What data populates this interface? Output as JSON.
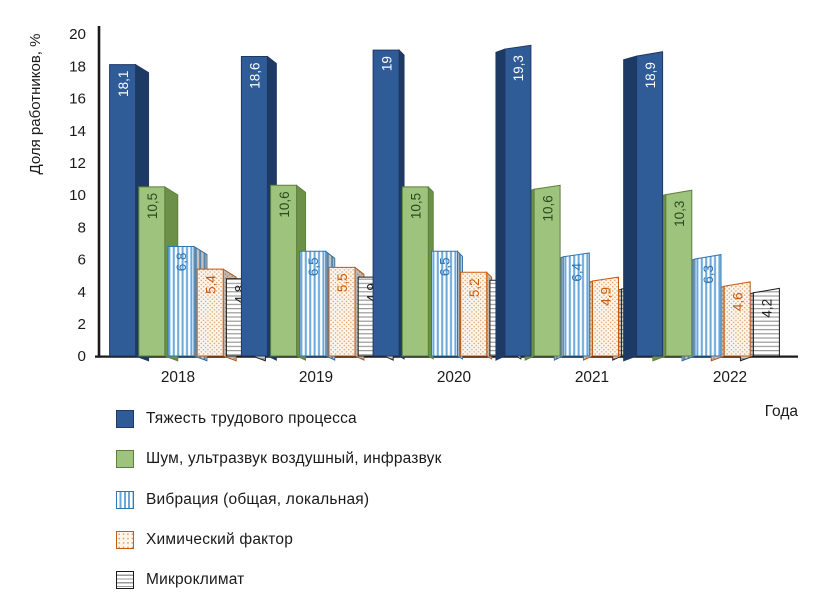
{
  "chart_data": {
    "type": "bar",
    "title": "",
    "ylabel": "Доля работников, %",
    "xlabel": "Года",
    "categories": [
      "2018",
      "2019",
      "2020",
      "2021",
      "2022"
    ],
    "ylim": [
      0,
      20
    ],
    "yticks": [
      0,
      2,
      4,
      6,
      8,
      10,
      12,
      14,
      16,
      18,
      20
    ],
    "grid": false,
    "legend_position": "bottom-left",
    "style": "3d-column",
    "axis_color": "#1a1a1a",
    "series": [
      {
        "name": "Тяжесть трудового процесса",
        "values": [
          18.1,
          18.6,
          19,
          19.3,
          18.9
        ],
        "labels": [
          "18,1",
          "18,6",
          "19",
          "19,3",
          "18,9"
        ],
        "pattern": "solid",
        "face": "#2F5B97",
        "accent": "#2F5B97",
        "side": "#1C3A63",
        "stroke": "#203864",
        "label_color": "#FFFFFF"
      },
      {
        "name": "Шум, ультразвук воздушный, инфразвук",
        "values": [
          10.5,
          10.6,
          10.5,
          10.6,
          10.3
        ],
        "labels": [
          "10,5",
          "10,6",
          "10,5",
          "10,6",
          "10,3"
        ],
        "pattern": "solid",
        "face": "#9DC37D",
        "accent": "#9DC37D",
        "side": "#6D9048",
        "stroke": "#5F7E3E",
        "label_color": "#2D4A1E"
      },
      {
        "name": "Вибрация (общая, локальная)",
        "values": [
          6.8,
          6.5,
          6.5,
          6.4,
          6.3
        ],
        "labels": [
          "6,8",
          "6,5",
          "6,5",
          "6,4",
          "6,3"
        ],
        "pattern": "vstripes",
        "face": "#FFFFFF",
        "accent": "#68A9DD",
        "side": "#9FC4E4",
        "stroke": "#2E75B6",
        "label_color": "#2E75B6"
      },
      {
        "name": "Химический фактор",
        "values": [
          5.4,
          5.5,
          5.2,
          4.9,
          4.6
        ],
        "labels": [
          "5,4",
          "5,5",
          "5,2",
          "4,9",
          "4,6"
        ],
        "pattern": "dots",
        "face": "#FDF6ED",
        "accent": "#E09C62",
        "side": "#E8D5BE",
        "stroke": "#C55A11",
        "label_color": "#C55A11"
      },
      {
        "name": "Микроклимат",
        "values": [
          4.8,
          4.9,
          4.7,
          4.4,
          4.2
        ],
        "labels": [
          "4,8",
          "4,9",
          "4,7",
          "4,4",
          "4,2"
        ],
        "pattern": "hstripes",
        "face": "#FFFFFF",
        "accent": "#9A9A9A",
        "side": "#C9C9C9",
        "stroke": "#1A1A1A",
        "label_color": "#1A1A1A"
      }
    ]
  }
}
